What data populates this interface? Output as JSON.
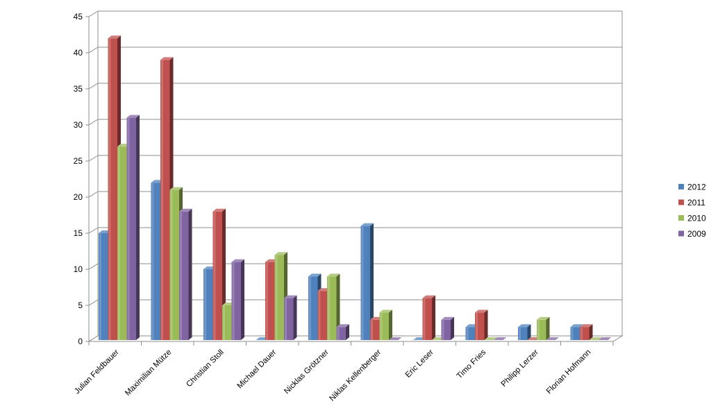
{
  "chart_data": {
    "type": "bar",
    "title": "",
    "xlabel": "",
    "ylabel": "",
    "ylim": [
      0,
      45
    ],
    "yticks": [
      0,
      5,
      10,
      15,
      20,
      25,
      30,
      35,
      40,
      45
    ],
    "grid": true,
    "legend_position": "right",
    "categories": [
      "Julian Feldbauer",
      "Maximilian Mütze",
      "Christian Stoll",
      "Michael Dauer",
      "Nicklas Grötzner",
      "Niklas Kellenberger",
      "Eric Leser",
      "Timo Fries",
      "Philipp Lerzer",
      "Florian Hofmann"
    ],
    "series": [
      {
        "name": "2012",
        "color": "#4f81bd",
        "values": [
          15,
          22,
          10,
          0,
          9,
          16,
          0,
          2,
          2,
          2
        ]
      },
      {
        "name": "2011",
        "color": "#c0504d",
        "values": [
          42,
          39,
          18,
          11,
          7,
          3,
          6,
          4,
          0,
          2
        ]
      },
      {
        "name": "2010",
        "color": "#9bbb59",
        "values": [
          27,
          21,
          5,
          12,
          9,
          4,
          0,
          0,
          3,
          0
        ]
      },
      {
        "name": "2009",
        "color": "#8064a2",
        "values": [
          31,
          18,
          11,
          6,
          2,
          0,
          3,
          0,
          0,
          0
        ]
      }
    ]
  }
}
